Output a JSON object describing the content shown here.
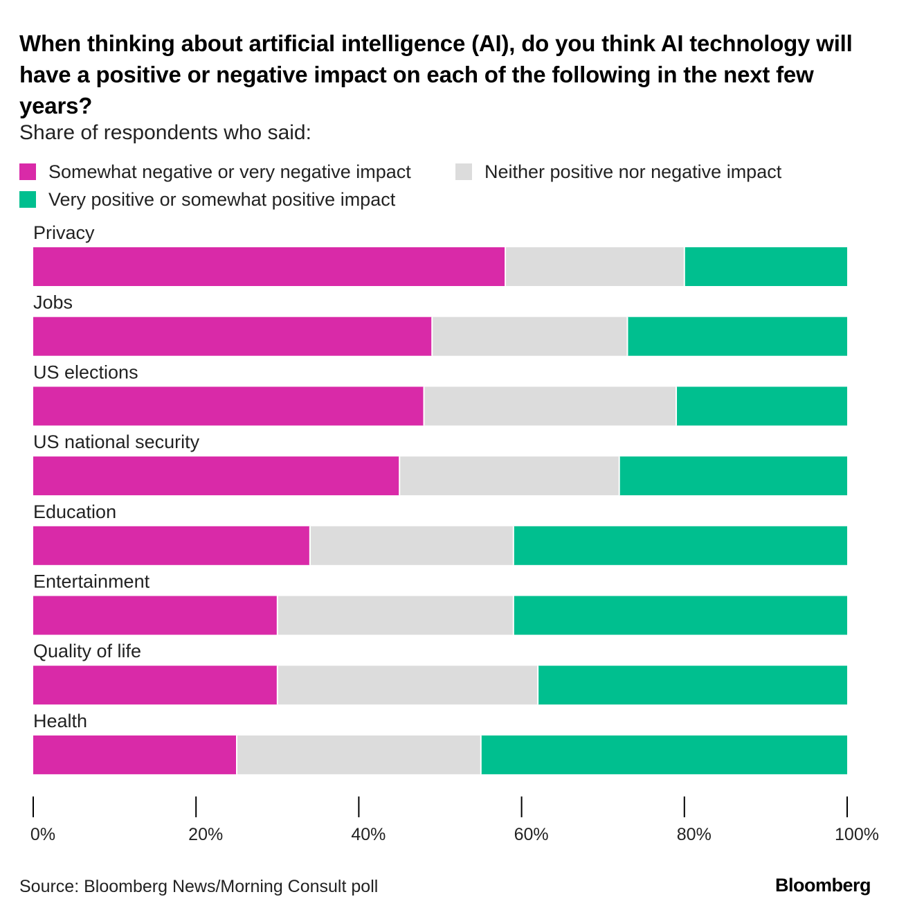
{
  "header": {
    "title": "When thinking about artificial intelligence (AI), do you think AI technology will have a positive or negative impact on each of the following in the next few years?",
    "subtitle": "Share of respondents who said:"
  },
  "legend": {
    "negative": {
      "label": "Somewhat negative or very negative impact",
      "color": "#d92aa8"
    },
    "neutral": {
      "label": "Neither positive nor negative impact",
      "color": "#dcdcdc"
    },
    "positive": {
      "label": "Very positive or somewhat positive impact",
      "color": "#00bf8f"
    }
  },
  "chart_data": {
    "type": "bar",
    "orientation": "horizontal",
    "stacked": true,
    "categories": [
      "Privacy",
      "Jobs",
      "US elections",
      "US national security",
      "Education",
      "Entertainment",
      "Quality of life",
      "Health"
    ],
    "series": [
      {
        "name": "Somewhat negative or very negative impact",
        "color": "#d92aa8",
        "values": [
          58,
          49,
          48,
          45,
          34,
          30,
          30,
          25
        ]
      },
      {
        "name": "Neither positive nor negative impact",
        "color": "#dcdcdc",
        "values": [
          22,
          24,
          31,
          27,
          25,
          29,
          32,
          30
        ]
      },
      {
        "name": "Very positive or somewhat positive impact",
        "color": "#00bf8f",
        "values": [
          20,
          27,
          21,
          28,
          41,
          41,
          38,
          45
        ]
      }
    ],
    "xlim": [
      0,
      100
    ],
    "xticks": [
      0,
      20,
      40,
      60,
      80,
      100
    ],
    "xtick_labels": [
      "0%",
      "20%",
      "40%",
      "60%",
      "80%",
      "100%"
    ],
    "grid": false,
    "legend_position": "top"
  },
  "footer": {
    "source": "Source: Bloomberg News/Morning Consult poll",
    "brand": "Bloomberg"
  }
}
